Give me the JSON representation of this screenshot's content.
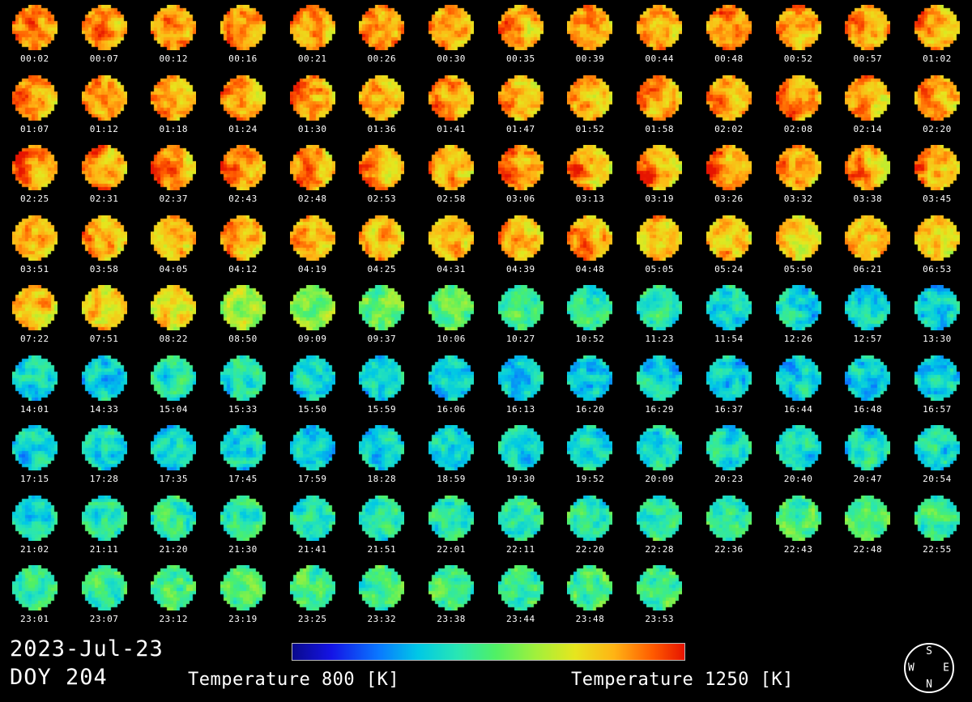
{
  "figure": {
    "date_line": "2023-Jul-23",
    "doy_line": "DOY 204",
    "colorbar_label_left": "Temperature 800 [K]",
    "colorbar_label_right": "Temperature 1250 [K]",
    "compass": {
      "top": "S",
      "left": "W",
      "right": "E",
      "bottom": "N"
    },
    "background": "#000000",
    "text_color": "#FFFFFF"
  },
  "chart_data": {
    "type": "heatmap",
    "description": "Grid of pixelated circular disk temperature maps over one day; color encodes temperature",
    "columns_per_row": 14,
    "temperature_scale": {
      "min_K": 800,
      "max_K": 1250,
      "units": "K"
    },
    "colormap_stops": [
      {
        "p": 0.0,
        "c": "#0A0A8C"
      },
      {
        "p": 0.1,
        "c": "#1414E6"
      },
      {
        "p": 0.22,
        "c": "#0A78FF"
      },
      {
        "p": 0.32,
        "c": "#00C8E6"
      },
      {
        "p": 0.42,
        "c": "#28E6B4"
      },
      {
        "p": 0.52,
        "c": "#50F064"
      },
      {
        "p": 0.62,
        "c": "#A0F03C"
      },
      {
        "p": 0.72,
        "c": "#E6E61E"
      },
      {
        "p": 0.82,
        "c": "#FFB414"
      },
      {
        "p": 0.92,
        "c": "#FF5A00"
      },
      {
        "p": 1.0,
        "c": "#E61400"
      }
    ],
    "frames": [
      {
        "time": "00:02",
        "mean_temp_K": 1185,
        "ew_gradient_K": -20
      },
      {
        "time": "00:07",
        "mean_temp_K": 1180,
        "ew_gradient_K": -10
      },
      {
        "time": "00:12",
        "mean_temp_K": 1185,
        "ew_gradient_K": -15
      },
      {
        "time": "00:16",
        "mean_temp_K": 1180,
        "ew_gradient_K": -10
      },
      {
        "time": "00:21",
        "mean_temp_K": 1180,
        "ew_gradient_K": -20
      },
      {
        "time": "00:26",
        "mean_temp_K": 1185,
        "ew_gradient_K": -10
      },
      {
        "time": "00:30",
        "mean_temp_K": 1175,
        "ew_gradient_K": -10
      },
      {
        "time": "00:35",
        "mean_temp_K": 1170,
        "ew_gradient_K": -30
      },
      {
        "time": "00:39",
        "mean_temp_K": 1180,
        "ew_gradient_K": -10
      },
      {
        "time": "00:44",
        "mean_temp_K": 1175,
        "ew_gradient_K": -20
      },
      {
        "time": "00:48",
        "mean_temp_K": 1180,
        "ew_gradient_K": -10
      },
      {
        "time": "00:52",
        "mean_temp_K": 1170,
        "ew_gradient_K": -25
      },
      {
        "time": "00:57",
        "mean_temp_K": 1175,
        "ew_gradient_K": -15
      },
      {
        "time": "01:02",
        "mean_temp_K": 1165,
        "ew_gradient_K": -40
      },
      {
        "time": "01:07",
        "mean_temp_K": 1180,
        "ew_gradient_K": -30
      },
      {
        "time": "01:12",
        "mean_temp_K": 1175,
        "ew_gradient_K": -25
      },
      {
        "time": "01:18",
        "mean_temp_K": 1175,
        "ew_gradient_K": -20
      },
      {
        "time": "01:24",
        "mean_temp_K": 1170,
        "ew_gradient_K": -25
      },
      {
        "time": "01:30",
        "mean_temp_K": 1175,
        "ew_gradient_K": -30
      },
      {
        "time": "01:36",
        "mean_temp_K": 1170,
        "ew_gradient_K": -20
      },
      {
        "time": "01:41",
        "mean_temp_K": 1175,
        "ew_gradient_K": -25
      },
      {
        "time": "01:47",
        "mean_temp_K": 1170,
        "ew_gradient_K": -30
      },
      {
        "time": "01:52",
        "mean_temp_K": 1175,
        "ew_gradient_K": -20
      },
      {
        "time": "01:58",
        "mean_temp_K": 1170,
        "ew_gradient_K": -25
      },
      {
        "time": "02:02",
        "mean_temp_K": 1170,
        "ew_gradient_K": -20
      },
      {
        "time": "02:08",
        "mean_temp_K": 1175,
        "ew_gradient_K": -30
      },
      {
        "time": "02:14",
        "mean_temp_K": 1170,
        "ew_gradient_K": -25
      },
      {
        "time": "02:20",
        "mean_temp_K": 1165,
        "ew_gradient_K": -30
      },
      {
        "time": "02:25",
        "mean_temp_K": 1185,
        "ew_gradient_K": -50
      },
      {
        "time": "02:31",
        "mean_temp_K": 1180,
        "ew_gradient_K": -45
      },
      {
        "time": "02:37",
        "mean_temp_K": 1180,
        "ew_gradient_K": -50
      },
      {
        "time": "02:43",
        "mean_temp_K": 1175,
        "ew_gradient_K": -45
      },
      {
        "time": "02:48",
        "mean_temp_K": 1175,
        "ew_gradient_K": -40
      },
      {
        "time": "02:53",
        "mean_temp_K": 1175,
        "ew_gradient_K": -45
      },
      {
        "time": "02:58",
        "mean_temp_K": 1170,
        "ew_gradient_K": -40
      },
      {
        "time": "03:06",
        "mean_temp_K": 1175,
        "ew_gradient_K": -45
      },
      {
        "time": "03:13",
        "mean_temp_K": 1170,
        "ew_gradient_K": -50
      },
      {
        "time": "03:19",
        "mean_temp_K": 1175,
        "ew_gradient_K": -45
      },
      {
        "time": "03:26",
        "mean_temp_K": 1170,
        "ew_gradient_K": -50
      },
      {
        "time": "03:32",
        "mean_temp_K": 1170,
        "ew_gradient_K": -45
      },
      {
        "time": "03:38",
        "mean_temp_K": 1165,
        "ew_gradient_K": -45
      },
      {
        "time": "03:45",
        "mean_temp_K": 1170,
        "ew_gradient_K": -50
      },
      {
        "time": "03:51",
        "mean_temp_K": 1170,
        "ew_gradient_K": -30
      },
      {
        "time": "03:58",
        "mean_temp_K": 1165,
        "ew_gradient_K": -25
      },
      {
        "time": "04:05",
        "mean_temp_K": 1160,
        "ew_gradient_K": -20
      },
      {
        "time": "04:12",
        "mean_temp_K": 1160,
        "ew_gradient_K": -25
      },
      {
        "time": "04:19",
        "mean_temp_K": 1155,
        "ew_gradient_K": -20
      },
      {
        "time": "04:25",
        "mean_temp_K": 1160,
        "ew_gradient_K": -20
      },
      {
        "time": "04:31",
        "mean_temp_K": 1155,
        "ew_gradient_K": -15
      },
      {
        "time": "04:39",
        "mean_temp_K": 1160,
        "ew_gradient_K": -20
      },
      {
        "time": "04:48",
        "mean_temp_K": 1165,
        "ew_gradient_K": -25
      },
      {
        "time": "05:05",
        "mean_temp_K": 1150,
        "ew_gradient_K": -15
      },
      {
        "time": "05:24",
        "mean_temp_K": 1150,
        "ew_gradient_K": -20
      },
      {
        "time": "05:50",
        "mean_temp_K": 1145,
        "ew_gradient_K": -15
      },
      {
        "time": "06:21",
        "mean_temp_K": 1150,
        "ew_gradient_K": -20
      },
      {
        "time": "06:53",
        "mean_temp_K": 1145,
        "ew_gradient_K": -15
      },
      {
        "time": "07:22",
        "mean_temp_K": 1150,
        "ew_gradient_K": -10
      },
      {
        "time": "07:51",
        "mean_temp_K": 1140,
        "ew_gradient_K": -10
      },
      {
        "time": "08:22",
        "mean_temp_K": 1125,
        "ew_gradient_K": -10
      },
      {
        "time": "08:50",
        "mean_temp_K": 1080,
        "ew_gradient_K": 0
      },
      {
        "time": "09:09",
        "mean_temp_K": 1060,
        "ew_gradient_K": 0
      },
      {
        "time": "09:37",
        "mean_temp_K": 1040,
        "ew_gradient_K": 0
      },
      {
        "time": "10:06",
        "mean_temp_K": 1030,
        "ew_gradient_K": 0
      },
      {
        "time": "10:27",
        "mean_temp_K": 1010,
        "ew_gradient_K": 0
      },
      {
        "time": "10:52",
        "mean_temp_K": 1000,
        "ew_gradient_K": 0
      },
      {
        "time": "11:23",
        "mean_temp_K": 985,
        "ew_gradient_K": 0
      },
      {
        "time": "11:54",
        "mean_temp_K": 975,
        "ew_gradient_K": 0
      },
      {
        "time": "12:26",
        "mean_temp_K": 965,
        "ew_gradient_K": 0
      },
      {
        "time": "12:57",
        "mean_temp_K": 960,
        "ew_gradient_K": 0
      },
      {
        "time": "13:30",
        "mean_temp_K": 955,
        "ew_gradient_K": 0
      },
      {
        "time": "14:01",
        "mean_temp_K": 970,
        "ew_gradient_K": 0
      },
      {
        "time": "14:33",
        "mean_temp_K": 960,
        "ew_gradient_K": 0
      },
      {
        "time": "15:04",
        "mean_temp_K": 985,
        "ew_gradient_K": 0
      },
      {
        "time": "15:33",
        "mean_temp_K": 975,
        "ew_gradient_K": 0
      },
      {
        "time": "15:50",
        "mean_temp_K": 965,
        "ew_gradient_K": 0
      },
      {
        "time": "15:59",
        "mean_temp_K": 960,
        "ew_gradient_K": 0
      },
      {
        "time": "16:06",
        "mean_temp_K": 955,
        "ew_gradient_K": 0
      },
      {
        "time": "16:13",
        "mean_temp_K": 960,
        "ew_gradient_K": 0
      },
      {
        "time": "16:20",
        "mean_temp_K": 955,
        "ew_gradient_K": 0
      },
      {
        "time": "16:29",
        "mean_temp_K": 960,
        "ew_gradient_K": 0
      },
      {
        "time": "16:37",
        "mean_temp_K": 950,
        "ew_gradient_K": 0
      },
      {
        "time": "16:44",
        "mean_temp_K": 955,
        "ew_gradient_K": 0
      },
      {
        "time": "16:48",
        "mean_temp_K": 950,
        "ew_gradient_K": 0
      },
      {
        "time": "16:57",
        "mean_temp_K": 955,
        "ew_gradient_K": 0
      },
      {
        "time": "17:15",
        "mean_temp_K": 960,
        "ew_gradient_K": 0
      },
      {
        "time": "17:28",
        "mean_temp_K": 965,
        "ew_gradient_K": 0
      },
      {
        "time": "17:35",
        "mean_temp_K": 970,
        "ew_gradient_K": 0
      },
      {
        "time": "17:45",
        "mean_temp_K": 965,
        "ew_gradient_K": 0
      },
      {
        "time": "17:59",
        "mean_temp_K": 960,
        "ew_gradient_K": 0
      },
      {
        "time": "18:28",
        "mean_temp_K": 955,
        "ew_gradient_K": 0
      },
      {
        "time": "18:59",
        "mean_temp_K": 965,
        "ew_gradient_K": 0
      },
      {
        "time": "19:30",
        "mean_temp_K": 970,
        "ew_gradient_K": 0
      },
      {
        "time": "19:52",
        "mean_temp_K": 975,
        "ew_gradient_K": 0
      },
      {
        "time": "20:09",
        "mean_temp_K": 980,
        "ew_gradient_K": 0
      },
      {
        "time": "20:23",
        "mean_temp_K": 970,
        "ew_gradient_K": 0
      },
      {
        "time": "20:40",
        "mean_temp_K": 975,
        "ew_gradient_K": 0
      },
      {
        "time": "20:47",
        "mean_temp_K": 980,
        "ew_gradient_K": 0
      },
      {
        "time": "20:54",
        "mean_temp_K": 975,
        "ew_gradient_K": 0
      },
      {
        "time": "21:02",
        "mean_temp_K": 980,
        "ew_gradient_K": 0
      },
      {
        "time": "21:11",
        "mean_temp_K": 985,
        "ew_gradient_K": 0
      },
      {
        "time": "21:20",
        "mean_temp_K": 990,
        "ew_gradient_K": 0
      },
      {
        "time": "21:30",
        "mean_temp_K": 995,
        "ew_gradient_K": 0
      },
      {
        "time": "21:41",
        "mean_temp_K": 1000,
        "ew_gradient_K": 10
      },
      {
        "time": "21:51",
        "mean_temp_K": 995,
        "ew_gradient_K": 0
      },
      {
        "time": "22:01",
        "mean_temp_K": 990,
        "ew_gradient_K": 0
      },
      {
        "time": "22:11",
        "mean_temp_K": 995,
        "ew_gradient_K": 0
      },
      {
        "time": "22:20",
        "mean_temp_K": 990,
        "ew_gradient_K": 0
      },
      {
        "time": "22:28",
        "mean_temp_K": 1000,
        "ew_gradient_K": 0
      },
      {
        "time": "22:36",
        "mean_temp_K": 995,
        "ew_gradient_K": 0
      },
      {
        "time": "22:43",
        "mean_temp_K": 1020,
        "ew_gradient_K": 10
      },
      {
        "time": "22:48",
        "mean_temp_K": 1025,
        "ew_gradient_K": 10
      },
      {
        "time": "22:55",
        "mean_temp_K": 1005,
        "ew_gradient_K": 0
      },
      {
        "time": "23:01",
        "mean_temp_K": 1010,
        "ew_gradient_K": 0
      },
      {
        "time": "23:07",
        "mean_temp_K": 1015,
        "ew_gradient_K": 0
      },
      {
        "time": "23:12",
        "mean_temp_K": 1020,
        "ew_gradient_K": 0
      },
      {
        "time": "23:19",
        "mean_temp_K": 1015,
        "ew_gradient_K": 0
      },
      {
        "time": "23:25",
        "mean_temp_K": 1020,
        "ew_gradient_K": 0
      },
      {
        "time": "23:32",
        "mean_temp_K": 1010,
        "ew_gradient_K": 0
      },
      {
        "time": "23:38",
        "mean_temp_K": 1015,
        "ew_gradient_K": 0
      },
      {
        "time": "23:44",
        "mean_temp_K": 1010,
        "ew_gradient_K": 0
      },
      {
        "time": "23:48",
        "mean_temp_K": 1020,
        "ew_gradient_K": 0
      },
      {
        "time": "23:53",
        "mean_temp_K": 1015,
        "ew_gradient_K": 0
      }
    ]
  }
}
